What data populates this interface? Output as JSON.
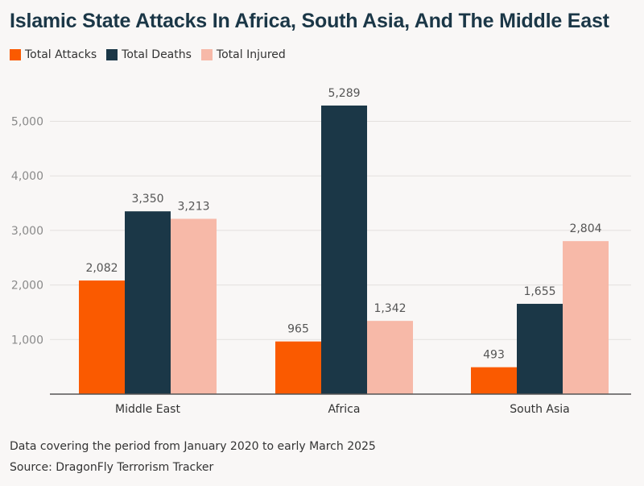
{
  "chart_data": {
    "type": "bar",
    "title": "Islamic State Attacks In Africa, South Asia, And The Middle East",
    "categories": [
      "Middle East",
      "Africa",
      "South Asia"
    ],
    "series": [
      {
        "name": "Total Attacks",
        "color": "#fa5a00",
        "values": [
          2082,
          965,
          493
        ],
        "labels": [
          "2,082",
          "965",
          "493"
        ]
      },
      {
        "name": "Total Deaths",
        "color": "#1b3747",
        "values": [
          3350,
          5289,
          1655
        ],
        "labels": [
          "3,350",
          "5,289",
          "1,655"
        ]
      },
      {
        "name": "Total Injured",
        "color": "#f7b9a8",
        "values": [
          3213,
          1342,
          2804
        ],
        "labels": [
          "3,213",
          "1,342",
          "2,804"
        ]
      }
    ],
    "yticks": [
      1000,
      2000,
      3000,
      4000,
      5000
    ],
    "ytick_labels": [
      "1,000",
      "2,000",
      "3,000",
      "4,000",
      "5,000"
    ],
    "ylim": [
      0,
      5500
    ],
    "grid": true,
    "legend_position": "top-left"
  },
  "footnote": {
    "coverage": "Data covering the period from January 2020 to early March 2025",
    "source": "Source: DragonFly Terrorism Tracker"
  }
}
